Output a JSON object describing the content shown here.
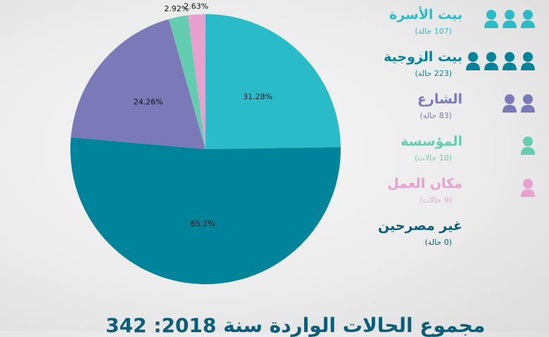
{
  "chart_data": {
    "type": "pie",
    "slices": [
      {
        "value": 31.28,
        "label": "31.28%",
        "color": "#29bcc8"
      },
      {
        "value": 65.2,
        "label": "65.2%",
        "color": "#00849b"
      },
      {
        "value": 24.26,
        "label": "24.26%",
        "color": "#7b79b8"
      },
      {
        "value": 2.92,
        "label": "2.92%",
        "color": "#64cdb0"
      },
      {
        "value": 2.63,
        "label": "2.63%",
        "color": "#e8a0cf"
      }
    ]
  },
  "legend": [
    {
      "name": "بيت الأسرة",
      "count": "(107 حالة)",
      "color": "#29bcc8",
      "icons": 3
    },
    {
      "name": "بيت الزوجية",
      "count": "(223 حالة)",
      "color": "#00849b",
      "icons": 4
    },
    {
      "name": "الشارع",
      "count": "(83 حالة)",
      "color": "#7b79b8",
      "icons": 2
    },
    {
      "name": "المؤسسة",
      "count": "(10 حالات)",
      "color": "#64cdb0",
      "icons": 1
    },
    {
      "name": "مكان العمل",
      "count": "(9 حالات)",
      "color": "#e8a0cf",
      "icons": 1
    },
    {
      "name": "غير مصرحين",
      "count": "(0 حالة)",
      "color": "#0b5e7a",
      "icons": 0
    }
  ],
  "footer": "مجموع الحالات الواردة سنة 2018: 342"
}
